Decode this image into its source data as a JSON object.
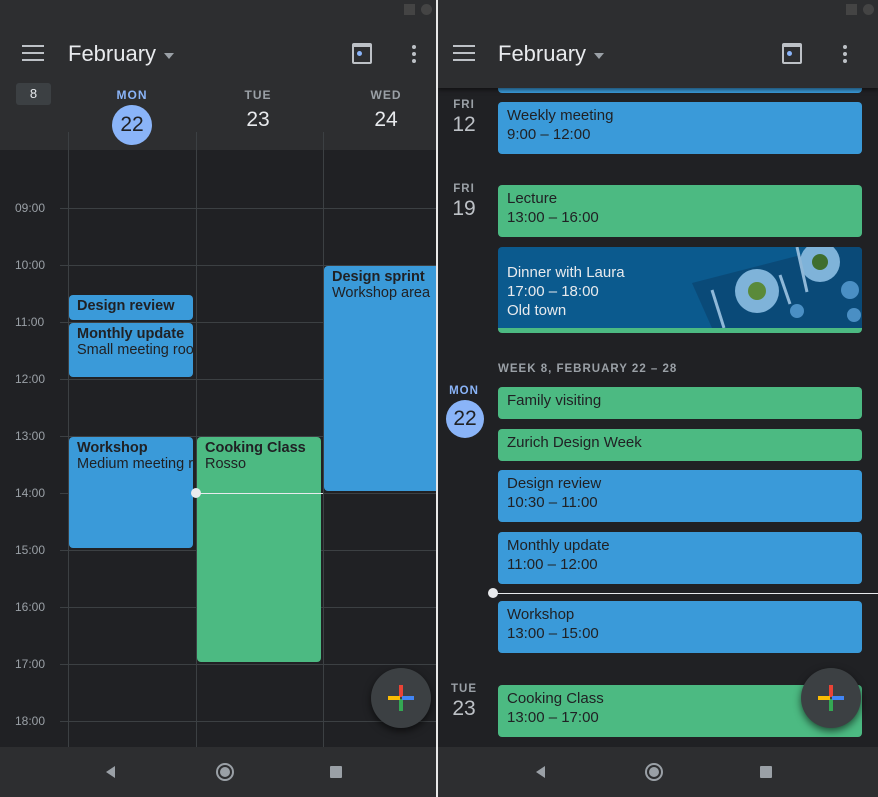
{
  "colors": {
    "event_blue": "#3a9ad9",
    "event_green": "#4cba82",
    "today": "#8ab4f8",
    "background": "#202124"
  },
  "header": {
    "month": "February",
    "week_number": "8"
  },
  "week_view": {
    "days": [
      {
        "dow": "MON",
        "num": "22",
        "today": true
      },
      {
        "dow": "TUE",
        "num": "23"
      },
      {
        "dow": "WED",
        "num": "24"
      }
    ],
    "hours": [
      "09:00",
      "10:00",
      "11:00",
      "12:00",
      "13:00",
      "14:00",
      "15:00",
      "16:00",
      "17:00",
      "18:00"
    ],
    "events": [
      {
        "title": "Design review",
        "subtitle": "",
        "color": "blue",
        "day": 0,
        "start": 10.5,
        "end": 11
      },
      {
        "title": "Monthly update",
        "subtitle": "Small meeting room",
        "color": "blue",
        "day": 0,
        "start": 11,
        "end": 12
      },
      {
        "title": "Workshop",
        "subtitle": "Medium meeting room",
        "color": "blue",
        "day": 0,
        "start": 13,
        "end": 15
      },
      {
        "title": "Cooking Class",
        "subtitle": "Rosso",
        "color": "green",
        "day": 1,
        "start": 13,
        "end": 17
      },
      {
        "title": "Design sprint",
        "subtitle": "Workshop area",
        "color": "blue",
        "day": 2,
        "start": 10,
        "end": 14
      }
    ],
    "current_time": 14
  },
  "schedule_view": {
    "days": [
      {
        "dow": "FRI",
        "num": "12"
      },
      {
        "dow": "FRI",
        "num": "19"
      },
      {
        "dow": "MON",
        "num": "22",
        "today": true
      },
      {
        "dow": "TUE",
        "num": "23"
      }
    ],
    "week_heading": "WEEK 8, FEBRUARY 22 – 28",
    "events": [
      {
        "title": "Weekly meeting",
        "time": "9:00 – 12:00",
        "color": "blue"
      },
      {
        "title": "Lecture",
        "time": "13:00 – 16:00",
        "color": "green"
      },
      {
        "title": "Dinner with Laura",
        "time": "17:00 – 18:00",
        "location": "Old town",
        "color": "blue"
      },
      {
        "title": "Family visiting",
        "color": "green"
      },
      {
        "title": "Zurich Design Week",
        "color": "green"
      },
      {
        "title": "Design review",
        "time": "10:30 – 11:00",
        "color": "blue"
      },
      {
        "title": "Monthly update",
        "time": "11:00 – 12:00",
        "color": "blue"
      },
      {
        "title": "Workshop",
        "time": "13:00 – 15:00",
        "color": "blue"
      },
      {
        "title": "Cooking Class",
        "time": "13:00 – 17:00",
        "color": "green"
      }
    ]
  },
  "icons": {
    "menu": "hamburger-icon",
    "today": "calendar-today-icon",
    "more": "more-vert-icon",
    "fab": "plus-icon"
  }
}
